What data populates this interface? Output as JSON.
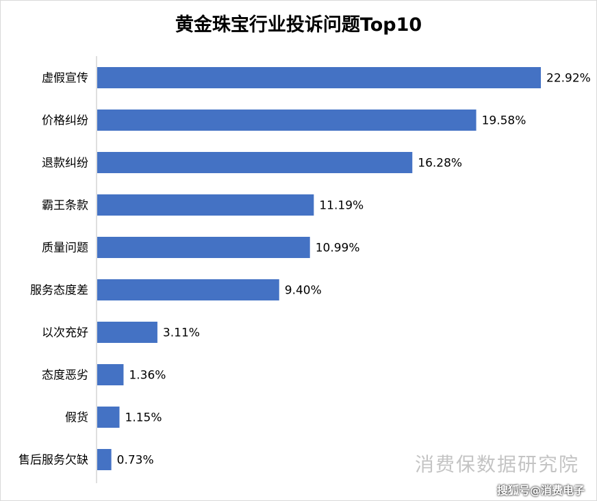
{
  "chart_data": {
    "type": "bar",
    "orientation": "horizontal",
    "title": "黄金珠宝行业投诉问题Top10",
    "categories": [
      "虚假宣传",
      "价格纠纷",
      "退款纠纷",
      "霸王条款",
      "质量问题",
      "服务态度差",
      "以次充好",
      "态度恶劣",
      "假货",
      "售后服务欠缺"
    ],
    "values": [
      22.92,
      19.58,
      16.28,
      11.19,
      10.99,
      9.4,
      3.11,
      1.36,
      1.15,
      0.73
    ],
    "value_labels": [
      "22.92%",
      "19.58%",
      "16.28%",
      "11.19%",
      "10.99%",
      "9.40%",
      "3.11%",
      "1.36%",
      "1.15%",
      "0.73%"
    ],
    "xlim": [
      0,
      22.92
    ],
    "grid": false,
    "bar_color": "#4472c4"
  },
  "watermark": "消费保数据研究院",
  "source_credit": "搜狐号@消费电子"
}
